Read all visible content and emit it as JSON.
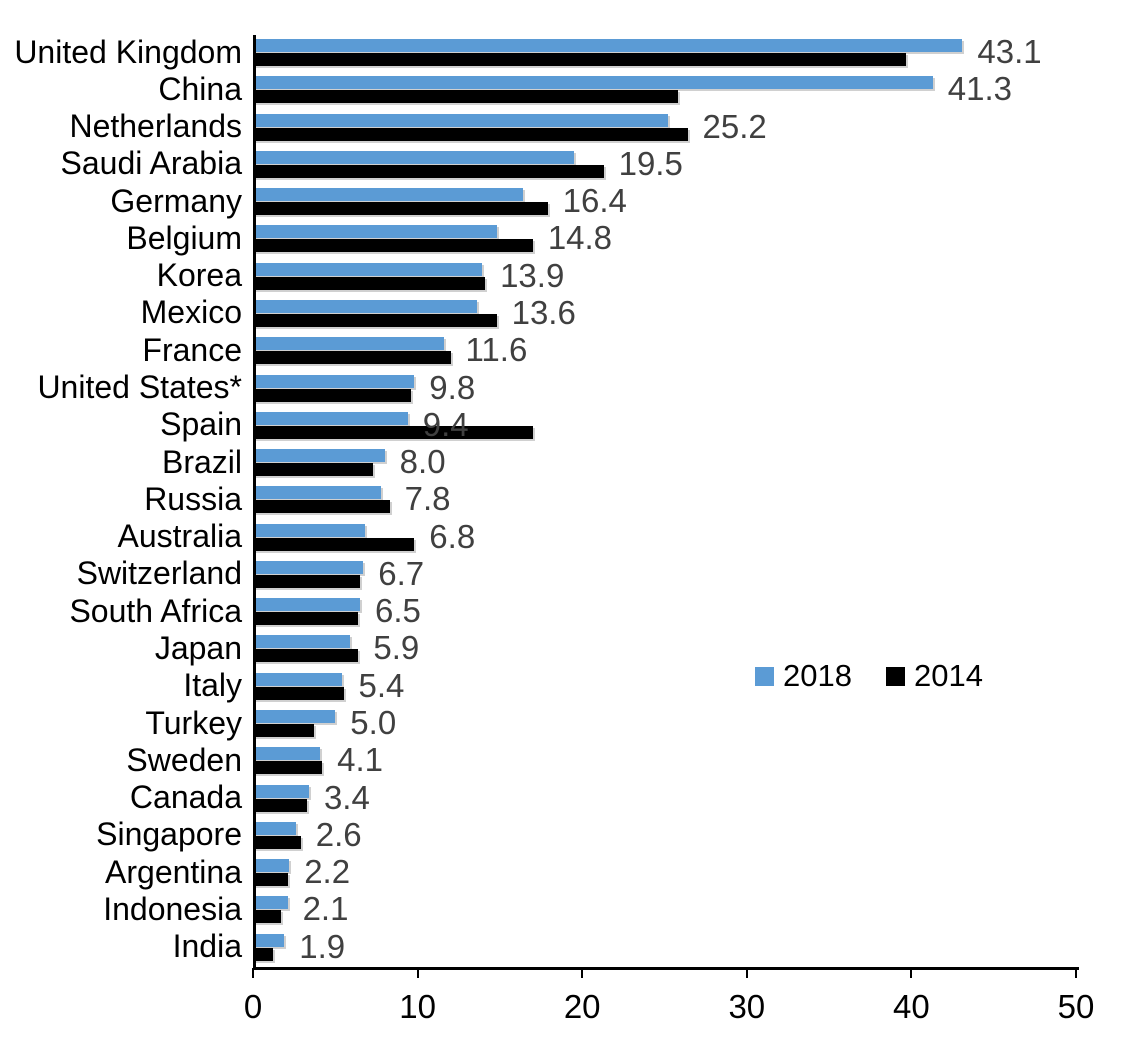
{
  "chart_data": {
    "type": "bar",
    "orientation": "horizontal",
    "title": "",
    "xlabel": "",
    "ylabel": "",
    "xlim": [
      0,
      50
    ],
    "x_ticks": [
      0,
      10,
      20,
      30,
      40,
      50
    ],
    "grid": false,
    "legend_position": "middle-right",
    "categories": [
      "United Kingdom",
      "China",
      "Netherlands",
      "Saudi Arabia",
      "Germany",
      "Belgium",
      "Korea",
      "Mexico",
      "France",
      "United States*",
      "Spain",
      "Brazil",
      "Russia",
      "Australia",
      "Switzerland",
      "South Africa",
      "Japan",
      "Italy",
      "Turkey",
      "Sweden",
      "Canada",
      "Singapore",
      "Argentina",
      "Indonesia",
      "India"
    ],
    "series": [
      {
        "name": "2018",
        "color": "#5B9BD5",
        "values": [
          43.1,
          41.3,
          25.2,
          19.5,
          16.4,
          14.8,
          13.9,
          13.6,
          11.6,
          9.8,
          9.4,
          8.0,
          7.8,
          6.8,
          6.7,
          6.5,
          5.9,
          5.4,
          5.0,
          4.1,
          3.4,
          2.6,
          2.2,
          2.1,
          1.9
        ]
      },
      {
        "name": "2014",
        "color": "#000000",
        "values": [
          39.7,
          25.8,
          26.4,
          21.3,
          17.9,
          17.0,
          14.1,
          14.8,
          12.0,
          9.6,
          17.0,
          7.3,
          8.3,
          9.8,
          6.5,
          6.4,
          6.4,
          5.5,
          3.7,
          4.2,
          3.3,
          2.9,
          2.1,
          1.7,
          1.2
        ]
      }
    ],
    "data_labels": {
      "series": "2018",
      "color": "#404040",
      "values": [
        "43.1",
        "41.3",
        "25.2",
        "19.5",
        "16.4",
        "14.8",
        "13.9",
        "13.6",
        "11.6",
        "9.8",
        "9.4",
        "8.0",
        "7.8",
        "6.8",
        "6.7",
        "6.5",
        "5.9",
        "5.4",
        "5.0",
        "4.1",
        "3.4",
        "2.6",
        "2.2",
        "2.1",
        "1.9"
      ]
    }
  },
  "legend": {
    "items": [
      {
        "label": "2018",
        "color": "#5B9BD5"
      },
      {
        "label": "2014",
        "color": "#000000"
      }
    ]
  }
}
